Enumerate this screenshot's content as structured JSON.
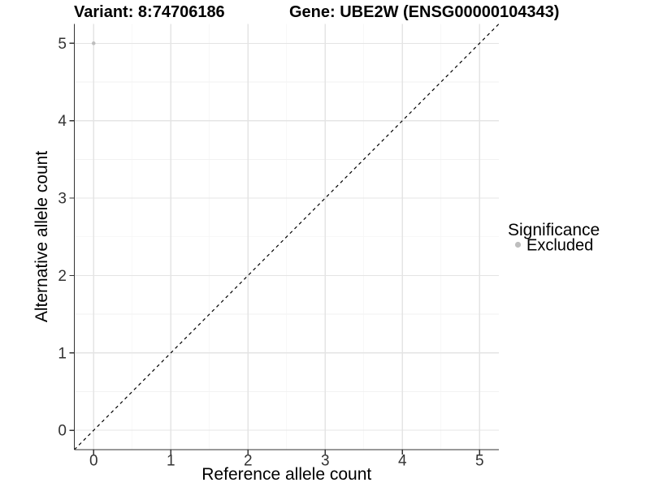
{
  "figure": {
    "background": "#ffffff"
  },
  "chart_data": {
    "type": "scatter",
    "title_left": "Variant: 8:74706186",
    "title_right": "Gene: UBE2W (ENSG00000104343)",
    "xlabel": "Reference allele count",
    "ylabel": "Alternative allele count",
    "xlim": [
      -0.25,
      5.25
    ],
    "ylim": [
      -0.25,
      5.25
    ],
    "x_ticks": [
      0,
      1,
      2,
      3,
      4,
      5
    ],
    "y_ticks": [
      0,
      1,
      2,
      3,
      4,
      5
    ],
    "x_minor_ticks": [
      0.5,
      1.5,
      2.5,
      3.5,
      4.5
    ],
    "y_minor_ticks": [
      0.5,
      1.5,
      2.5,
      3.5,
      4.5
    ],
    "grid": "major+minor",
    "legend_position": "right",
    "reference_line": {
      "kind": "identity",
      "from": -0.25,
      "to": 5.25,
      "style": "dashed"
    },
    "series": [
      {
        "name": "Excluded",
        "color": "#bebebe",
        "point_radius": 2.3,
        "points": [
          [
            0,
            5
          ]
        ]
      }
    ],
    "legend": {
      "title": "Significance",
      "entries": [
        {
          "label": "Excluded",
          "color": "#bebebe"
        }
      ]
    },
    "colors": {
      "background": "#ffffff",
      "grid_major": "#e4e4e4",
      "grid_minor": "#f2f2f2",
      "axis": "#333333",
      "tick_label": "#333333",
      "title": "#000000",
      "reference_line": "#000000"
    }
  }
}
